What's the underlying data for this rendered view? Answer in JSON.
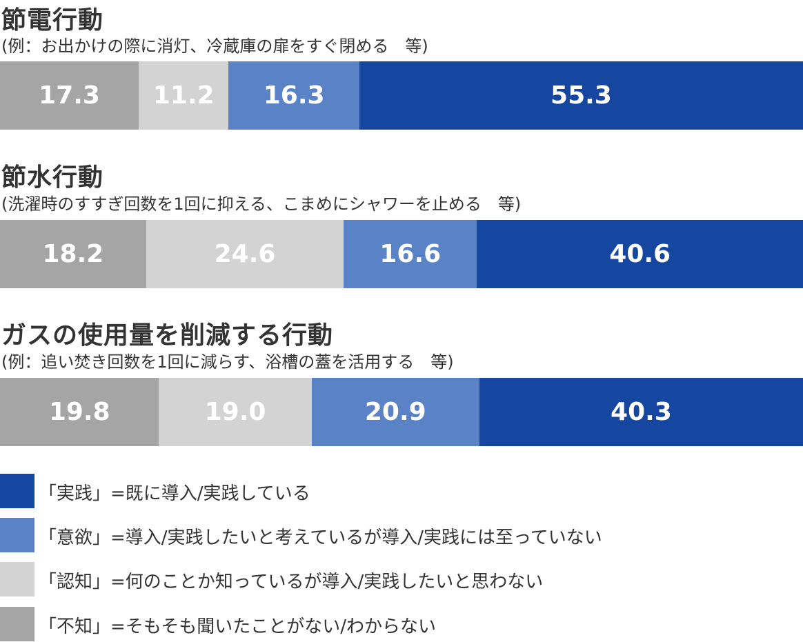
{
  "colors": {
    "jissen": "#1546A0",
    "iyoku": "#5983C6",
    "ninchi": "#D3D3D3",
    "fuchi": "#A5A5A5"
  },
  "chart_data": [
    {
      "type": "bar",
      "orientation": "horizontal-stacked-100",
      "title": "節電行動",
      "subtitle": "(例：お出かけの際に消灯、冷蔵庫の扉をすぐ閉める　等)",
      "segments": [
        {
          "series": "不知",
          "value": 17.3,
          "label": "17.3"
        },
        {
          "series": "認知",
          "value": 11.2,
          "label": "11.2"
        },
        {
          "series": "意欲",
          "value": 16.3,
          "label": "16.3"
        },
        {
          "series": "実践",
          "value": 55.3,
          "label": "55.3"
        }
      ]
    },
    {
      "type": "bar",
      "orientation": "horizontal-stacked-100",
      "title": "節水行動",
      "subtitle": "(洗濯時のすすぎ回数を1回に抑える、こまめにシャワーを止める　等)",
      "segments": [
        {
          "series": "不知",
          "value": 18.2,
          "label": "18.2"
        },
        {
          "series": "認知",
          "value": 24.6,
          "label": "24.6"
        },
        {
          "series": "意欲",
          "value": 16.6,
          "label": "16.6"
        },
        {
          "series": "実践",
          "value": 40.6,
          "label": "40.6"
        }
      ]
    },
    {
      "type": "bar",
      "orientation": "horizontal-stacked-100",
      "title": "ガスの使用量を削減する行動",
      "subtitle": "(例：追い焚き回数を1回に減らす、浴槽の蓋を活用する　等)",
      "segments": [
        {
          "series": "不知",
          "value": 19.8,
          "label": "19.8"
        },
        {
          "series": "認知",
          "value": 19.0,
          "label": "19.0"
        },
        {
          "series": "意欲",
          "value": 20.9,
          "label": "20.9"
        },
        {
          "series": "実践",
          "value": 40.3,
          "label": "40.3"
        }
      ]
    }
  ],
  "legend": [
    {
      "series": "実践",
      "text": "「実践」=既に導入/実践している"
    },
    {
      "series": "意欲",
      "text": "「意欲」=導入/実践したいと考えているが導入/実践には至っていない"
    },
    {
      "series": "認知",
      "text": "「認知」=何のことか知っているが導入/実践したいと思わない"
    },
    {
      "series": "不知",
      "text": "「不知」=そもそも聞いたことがない/わからない"
    }
  ]
}
